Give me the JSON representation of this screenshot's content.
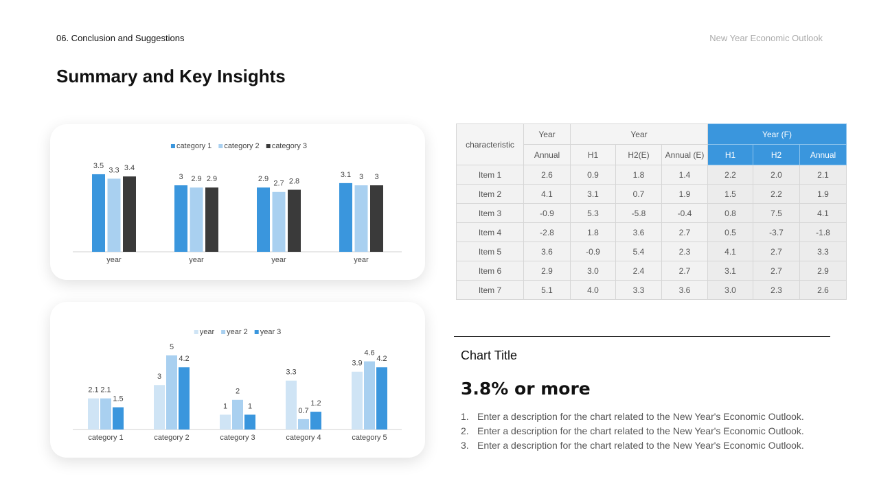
{
  "header": {
    "section": "06. Conclusion and Suggestions",
    "title": "Summary and Key Insights",
    "brand": "New Year Economic Outlook"
  },
  "chart_data": [
    {
      "type": "bar",
      "categories": [
        "year",
        "year",
        "year",
        "year"
      ],
      "series": [
        {
          "name": "category 1",
          "color": "#3a96dd",
          "values": [
            3.5,
            3,
            2.9,
            3.1
          ]
        },
        {
          "name": "category 2",
          "color": "#a9d0f0",
          "values": [
            3.3,
            2.9,
            2.7,
            3
          ]
        },
        {
          "name": "category 3",
          "color": "#3a3a3a",
          "values": [
            3.4,
            2.9,
            2.8,
            3
          ]
        }
      ]
    },
    {
      "type": "bar",
      "categories": [
        "category 1",
        "category 2",
        "category 3",
        "category 4",
        "category 5"
      ],
      "series": [
        {
          "name": "year",
          "color": "#cfe4f5",
          "values": [
            2.1,
            3,
            1,
            3.3,
            3.9
          ]
        },
        {
          "name": "year 2",
          "color": "#a9d0f0",
          "values": [
            2.1,
            5,
            2,
            0.7,
            4.6
          ]
        },
        {
          "name": "year 3",
          "color": "#3a96dd",
          "values": [
            1.5,
            4.2,
            1,
            1.2,
            4.2
          ]
        }
      ]
    }
  ],
  "table": {
    "head1": [
      "characteristic",
      "Year",
      "Year",
      "Year (F)"
    ],
    "head2": [
      "Annual",
      "H1",
      "H2(E)",
      "Annual (E)",
      "H1",
      "H2",
      "Annual"
    ],
    "rows": [
      [
        "Item 1",
        "2.6",
        "0.9",
        "1.8",
        "1.4",
        "2.2",
        "2.0",
        "2.1"
      ],
      [
        "Item 2",
        "4.1",
        "3.1",
        "0.7",
        "1.9",
        "1.5",
        "2.2",
        "1.9"
      ],
      [
        "Item 3",
        "-0.9",
        "5.3",
        "-5.8",
        "-0.4",
        "0.8",
        "7.5",
        "4.1"
      ],
      [
        "Item 4",
        "-2.8",
        "1.8",
        "3.6",
        "2.7",
        "0.5",
        "-3.7",
        "-1.8"
      ],
      [
        "Item 5",
        "3.6",
        "-0.9",
        "5.4",
        "2.3",
        "4.1",
        "2.7",
        "3.3"
      ],
      [
        "Item 6",
        "2.9",
        "3.0",
        "2.4",
        "2.7",
        "3.1",
        "2.7",
        "2.9"
      ],
      [
        "Item 7",
        "5.1",
        "4.0",
        "3.3",
        "3.6",
        "3.0",
        "2.3",
        "2.6"
      ]
    ]
  },
  "note": {
    "title": "Chart Title",
    "headline": "3.8% or more",
    "items": [
      {
        "number": "1.",
        "text": "Enter a description for the chart related to the New Year's Economic Outlook."
      },
      {
        "number": "2.",
        "text": "Enter a description for the chart related to the New Year's Economic Outlook."
      },
      {
        "number": "3.",
        "text": "Enter a description for the chart related to the New Year's Economic Outlook."
      }
    ]
  }
}
